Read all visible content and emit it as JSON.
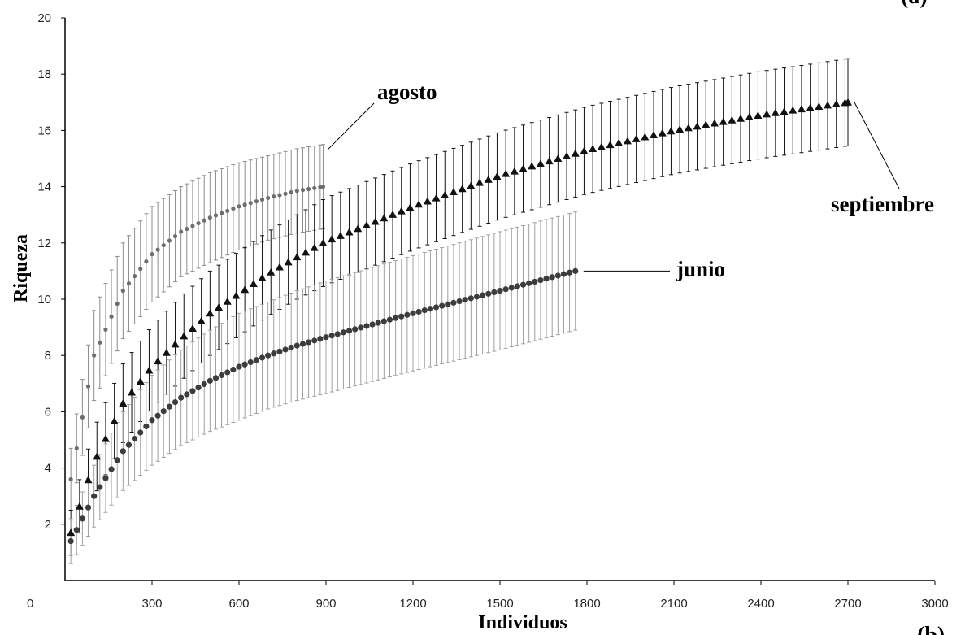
{
  "chart_data": {
    "type": "line",
    "xlabel": "Individuos",
    "ylabel": "Riqueza",
    "xlim": [
      0,
      3000
    ],
    "ylim": [
      0,
      20
    ],
    "xticks": [
      "0",
      "300",
      "600",
      "900",
      "1200",
      "1500",
      "1800",
      "2100",
      "2400",
      "2700",
      "3000"
    ],
    "yticks": [
      "2",
      "4",
      "6",
      "8",
      "10",
      "12",
      "14",
      "16",
      "18",
      "20"
    ],
    "grid": false,
    "corner_marks": {
      "top": "(a)",
      "bottom": "(b)"
    },
    "series": [
      {
        "name": "agosto",
        "color": "#6e6e6e",
        "errcolor": "#8c8c8c",
        "marker": "circle",
        "x": [
          20,
          100,
          200,
          300,
          400,
          500,
          600,
          700,
          800,
          890
        ],
        "y": [
          3.6,
          8.0,
          10.3,
          11.6,
          12.4,
          12.9,
          13.3,
          13.6,
          13.85,
          14.0
        ],
        "err": [
          1.1,
          1.6,
          1.7,
          1.7,
          1.6,
          1.6,
          1.55,
          1.5,
          1.5,
          1.5
        ]
      },
      {
        "name": "septiembre",
        "color": "#111111",
        "errcolor": "#111111",
        "marker": "triangle",
        "x": [
          20,
          100,
          200,
          300,
          400,
          500,
          600,
          700,
          800,
          900,
          1200,
          1500,
          1800,
          2100,
          2400,
          2700
        ],
        "y": [
          1.7,
          4.2,
          6.3,
          7.6,
          8.6,
          9.5,
          10.2,
          10.9,
          11.5,
          12.05,
          13.3,
          14.4,
          15.3,
          16.0,
          16.55,
          17.0
        ],
        "err": [
          0.8,
          1.2,
          1.4,
          1.45,
          1.5,
          1.5,
          1.5,
          1.5,
          1.5,
          1.55,
          1.55,
          1.55,
          1.55,
          1.55,
          1.55,
          1.55
        ]
      },
      {
        "name": "junio",
        "color": "#3c3c3c",
        "errcolor": "#a0a0a0",
        "marker": "circle",
        "x": [
          20,
          100,
          200,
          300,
          400,
          500,
          600,
          700,
          800,
          900,
          1200,
          1500,
          1760
        ],
        "y": [
          1.4,
          3.0,
          4.6,
          5.7,
          6.5,
          7.1,
          7.6,
          8.0,
          8.35,
          8.65,
          9.5,
          10.3,
          11.0
        ],
        "err": [
          0.8,
          1.1,
          1.4,
          1.6,
          1.7,
          1.8,
          1.9,
          1.9,
          1.95,
          2.0,
          2.05,
          2.1,
          2.1
        ]
      }
    ]
  }
}
